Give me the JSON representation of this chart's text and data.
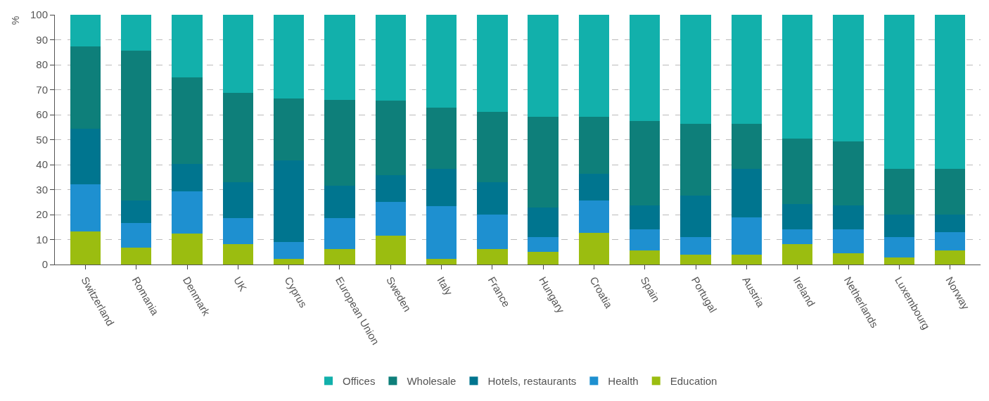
{
  "chart_data": {
    "type": "bar",
    "stacked": true,
    "ylabel": "%",
    "categories": [
      "Switzerland",
      "Romania",
      "Denmark",
      "UK",
      "Cyprus",
      "European Union",
      "Sweden",
      "Italy",
      "France",
      "Hungary",
      "Croatia",
      "Spain",
      "Portugal",
      "Austria",
      "Ireland",
      "Netherlands",
      "Luxembourg",
      "Norway"
    ],
    "series": [
      {
        "name": "Education",
        "color": "#9bbd10",
        "values": [
          13.3,
          6.8,
          12.3,
          8.3,
          2.3,
          6.2,
          11.6,
          2.3,
          6.2,
          5.1,
          12.8,
          5.6,
          4.0,
          4.0,
          8.1,
          4.5,
          2.9,
          5.6
        ]
      },
      {
        "name": "Health",
        "color": "#1e90d0",
        "values": [
          18.7,
          9.7,
          17.1,
          10.3,
          6.6,
          12.4,
          13.5,
          21.2,
          13.9,
          5.8,
          12.8,
          8.6,
          6.9,
          15.0,
          5.9,
          9.5,
          8.1,
          7.4
        ]
      },
      {
        "name": "Hotels, restaurants",
        "color": "#00758f",
        "values": [
          22.5,
          9.1,
          10.8,
          14.5,
          32.8,
          13.0,
          10.7,
          14.9,
          12.8,
          11.9,
          10.7,
          9.6,
          16.7,
          19.2,
          10.2,
          9.8,
          9.1,
          7.1
        ]
      },
      {
        "name": "Wholesale",
        "color": "#0e7f7a",
        "values": [
          32.8,
          60.1,
          34.8,
          35.5,
          24.7,
          34.4,
          29.7,
          24.5,
          28.3,
          36.3,
          22.8,
          33.6,
          28.7,
          18.1,
          26.3,
          25.6,
          18.1,
          18.1
        ]
      },
      {
        "name": "Offices",
        "color": "#12b0ab",
        "values": [
          12.7,
          14.3,
          25.0,
          31.4,
          33.6,
          34.0,
          34.5,
          37.1,
          38.8,
          40.9,
          40.9,
          42.6,
          43.7,
          43.7,
          49.5,
          50.6,
          61.8,
          61.8
        ]
      }
    ],
    "ylim": [
      0,
      100
    ],
    "yticks": [
      0,
      10,
      20,
      30,
      40,
      50,
      60,
      70,
      80,
      90,
      100
    ],
    "grid": "y",
    "legend": "bottom"
  }
}
